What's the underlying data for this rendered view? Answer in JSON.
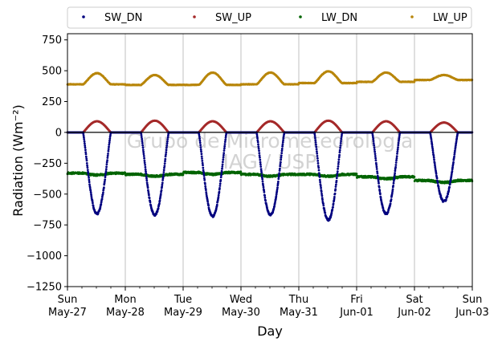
{
  "chart_data": {
    "type": "scatter",
    "xlabel": "Day",
    "ylabel": "Radiation (Wm⁻²)",
    "ylim": [
      -1250,
      800
    ],
    "yticks": [
      750,
      500,
      250,
      0,
      -250,
      -500,
      -750,
      -1000,
      -1250
    ],
    "ytick_labels": [
      "750",
      "500",
      "250",
      "0",
      "−250",
      "−500",
      "−750",
      "−1000",
      "−1250"
    ],
    "xlim_days": [
      0,
      7
    ],
    "xticks": [
      {
        "day": 0,
        "top": "Sun",
        "bottom": "May-27"
      },
      {
        "day": 1,
        "top": "Mon",
        "bottom": "May-28"
      },
      {
        "day": 2,
        "top": "Tue",
        "bottom": "May-29"
      },
      {
        "day": 3,
        "top": "Wed",
        "bottom": "May-30"
      },
      {
        "day": 4,
        "top": "Thu",
        "bottom": "May-31"
      },
      {
        "day": 5,
        "top": "Fri",
        "bottom": "Jun-01"
      },
      {
        "day": 6,
        "top": "Sat",
        "bottom": "Jun-02"
      },
      {
        "day": 7,
        "top": "Sun",
        "bottom": "Jun-03"
      }
    ],
    "grid": "vertical",
    "legend_position": "top",
    "watermark": [
      "Grupo de Micrometeorologia",
      "IAG / USP"
    ],
    "series": [
      {
        "name": "SW_DN",
        "color": "#00007f",
        "night_value": 0,
        "daily_min": [
          -660,
          -670,
          -680,
          -670,
          -710,
          -660,
          -560
        ]
      },
      {
        "name": "SW_UP",
        "color": "#a52a2a",
        "night_value": 0,
        "daily_max": [
          90,
          95,
          90,
          90,
          95,
          90,
          80
        ]
      },
      {
        "name": "LW_DN",
        "color": "#006400",
        "daily_level": [
          -330,
          -340,
          -325,
          -340,
          -340,
          -360,
          -390
        ]
      },
      {
        "name": "LW_UP",
        "color": "#b8860b",
        "night_level": [
          390,
          385,
          385,
          390,
          400,
          410,
          425
        ],
        "daily_max": [
          480,
          465,
          485,
          485,
          495,
          485,
          465
        ]
      }
    ]
  }
}
